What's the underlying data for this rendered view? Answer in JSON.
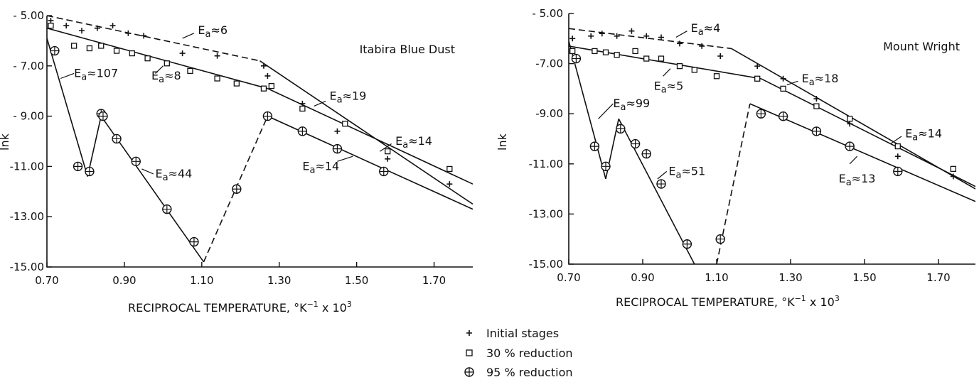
{
  "legend": [
    {
      "symbol": "plus",
      "label": "Initial stages"
    },
    {
      "symbol": "square",
      "label": "30 % reduction"
    },
    {
      "symbol": "circle-plus",
      "label": "95 % reduction"
    }
  ],
  "chart_data": [
    {
      "type": "scatter",
      "title": "Itabira Blue Dust",
      "xlabel": "RECIPROCAL TEMPERATURE,",
      "xlabel_unit_base": "°K",
      "xlabel_unit_exp": "−1",
      "xlabel_unit_mult": "x 10",
      "xlabel_unit_mult_exp": "3",
      "ylabel": "lnk",
      "xlim": [
        0.7,
        1.8
      ],
      "ylim": [
        -15.0,
        -5.0
      ],
      "xticks": [
        {
          "v": 0.7,
          "label": "0.70"
        },
        {
          "v": 0.9,
          "label": "0.90"
        },
        {
          "v": 1.1,
          "label": "1.10"
        },
        {
          "v": 1.3,
          "label": "1.30"
        },
        {
          "v": 1.5,
          "label": "1.50"
        },
        {
          "v": 1.7,
          "label": "1.70"
        }
      ],
      "yticks": [
        {
          "v": -5,
          "label": "- 5.00"
        },
        {
          "v": -7,
          "label": "- 7.00"
        },
        {
          "v": -9,
          "label": "- 9.00"
        },
        {
          "v": -11,
          "label": "-11.00"
        },
        {
          "v": -13,
          "label": "-13.00"
        },
        {
          "v": -15,
          "label": "-15.00"
        }
      ],
      "series": [
        {
          "name": "Initial stages",
          "marker": "plus",
          "points": [
            [
              0.71,
              -5.2
            ],
            [
              0.75,
              -5.4
            ],
            [
              0.79,
              -5.6
            ],
            [
              0.83,
              -5.5
            ],
            [
              0.87,
              -5.4
            ],
            [
              0.91,
              -5.7
            ],
            [
              0.95,
              -5.8
            ],
            [
              1.05,
              -6.5
            ],
            [
              1.14,
              -6.6
            ],
            [
              1.26,
              -7.0
            ],
            [
              1.27,
              -7.4
            ],
            [
              1.36,
              -8.5
            ],
            [
              1.45,
              -9.6
            ],
            [
              1.58,
              -10.7
            ],
            [
              1.74,
              -11.7
            ]
          ]
        },
        {
          "name": "30 % reduction",
          "marker": "square",
          "points": [
            [
              0.71,
              -5.4
            ],
            [
              0.77,
              -6.2
            ],
            [
              0.81,
              -6.3
            ],
            [
              0.84,
              -6.2
            ],
            [
              0.88,
              -6.4
            ],
            [
              0.92,
              -6.5
            ],
            [
              0.96,
              -6.7
            ],
            [
              1.01,
              -6.9
            ],
            [
              1.07,
              -7.2
            ],
            [
              1.14,
              -7.5
            ],
            [
              1.19,
              -7.7
            ],
            [
              1.26,
              -7.9
            ],
            [
              1.28,
              -7.8
            ],
            [
              1.36,
              -8.7
            ],
            [
              1.47,
              -9.3
            ],
            [
              1.58,
              -10.4
            ],
            [
              1.74,
              -11.1
            ]
          ]
        },
        {
          "name": "95 % reduction",
          "marker": "circle-plus",
          "points": [
            [
              0.72,
              -6.4
            ],
            [
              0.78,
              -11.0
            ],
            [
              0.81,
              -11.2
            ],
            [
              0.84,
              -8.9
            ],
            [
              0.845,
              -9.0
            ],
            [
              0.88,
              -9.9
            ],
            [
              0.93,
              -10.8
            ],
            [
              1.01,
              -12.7
            ],
            [
              1.08,
              -14.0
            ],
            [
              1.19,
              -11.9
            ],
            [
              1.27,
              -9.0
            ],
            [
              1.36,
              -9.6
            ],
            [
              1.45,
              -10.3
            ],
            [
              1.57,
              -11.2
            ]
          ]
        }
      ],
      "fit_lines": [
        {
          "style": "solid",
          "points": [
            [
              0.7,
              -5.9
            ],
            [
              0.805,
              -11.4
            ]
          ]
        },
        {
          "style": "solid",
          "points": [
            [
              0.805,
              -11.4
            ],
            [
              0.84,
              -9.0
            ]
          ]
        },
        {
          "style": "solid",
          "points": [
            [
              0.84,
              -9.0
            ],
            [
              1.105,
              -14.8
            ]
          ]
        },
        {
          "style": "dashed",
          "points": [
            [
              1.105,
              -14.8
            ],
            [
              1.27,
              -9.0
            ]
          ]
        },
        {
          "style": "solid",
          "points": [
            [
              1.27,
              -9.0
            ],
            [
              1.8,
              -12.7
            ]
          ]
        },
        {
          "style": "dashed",
          "points": [
            [
              0.7,
              -5.0
            ],
            [
              1.25,
              -6.8
            ]
          ]
        },
        {
          "style": "solid",
          "points": [
            [
              1.25,
              -6.8
            ],
            [
              1.8,
              -12.5
            ]
          ]
        },
        {
          "style": "solid",
          "points": [
            [
              0.7,
              -5.5
            ],
            [
              1.27,
              -7.9
            ]
          ]
        },
        {
          "style": "solid",
          "points": [
            [
              1.27,
              -7.9
            ],
            [
              1.8,
              -11.7
            ]
          ]
        }
      ],
      "annotations": [
        {
          "base": "E",
          "sub": "a",
          "rel": "≈6",
          "at": [
            1.09,
            -5.6
          ],
          "leader": [
            [
              1.08,
              -5.7
            ],
            [
              1.05,
              -5.9
            ]
          ]
        },
        {
          "base": "E",
          "sub": "a",
          "rel": "≈8",
          "at": [
            0.97,
            -7.4
          ],
          "leader": [
            [
              0.98,
              -7.3
            ],
            [
              1.0,
              -7.0
            ]
          ]
        },
        {
          "base": "E",
          "sub": "a",
          "rel": "≈107",
          "at": [
            0.77,
            -7.3
          ],
          "leader": [
            [
              0.77,
              -7.3
            ],
            [
              0.735,
              -7.5
            ]
          ]
        },
        {
          "base": "E",
          "sub": "a",
          "rel": "≈19",
          "at": [
            1.43,
            -8.2
          ],
          "leader": [
            [
              1.42,
              -8.4
            ],
            [
              1.39,
              -8.6
            ]
          ]
        },
        {
          "base": "E",
          "sub": "a",
          "rel": "≈14",
          "at": [
            1.6,
            -10.0
          ],
          "leader": [
            [
              1.59,
              -10.1
            ],
            [
              1.56,
              -10.4
            ]
          ]
        },
        {
          "base": "E",
          "sub": "a",
          "rel": "≈14",
          "at": [
            1.36,
            -11.0
          ],
          "leader": [
            [
              1.45,
              -10.8
            ],
            [
              1.49,
              -10.6
            ]
          ]
        },
        {
          "base": "E",
          "sub": "a",
          "rel": "≈44",
          "at": [
            0.98,
            -11.3
          ],
          "leader": [
            [
              0.975,
              -11.3
            ],
            [
              0.945,
              -11.1
            ]
          ]
        }
      ]
    },
    {
      "type": "scatter",
      "title": "Mount Wright",
      "xlabel": "RECIPROCAL TEMPERATURE,",
      "xlabel_unit_base": "°K",
      "xlabel_unit_exp": "−1",
      "xlabel_unit_mult": "x 10",
      "xlabel_unit_mult_exp": "3",
      "ylabel": "lnk",
      "xlim": [
        0.7,
        1.8
      ],
      "ylim": [
        -15.0,
        -5.0
      ],
      "xticks": [
        {
          "v": 0.7,
          "label": "0.70"
        },
        {
          "v": 0.9,
          "label": "0.90"
        },
        {
          "v": 1.1,
          "label": "1.10"
        },
        {
          "v": 1.3,
          "label": "1.30"
        },
        {
          "v": 1.5,
          "label": "1.50"
        },
        {
          "v": 1.7,
          "label": "1.70"
        }
      ],
      "yticks": [
        {
          "v": -5,
          "label": "- 5.00"
        },
        {
          "v": -7,
          "label": "-7.00"
        },
        {
          "v": -9,
          "label": "-9.00"
        },
        {
          "v": -11,
          "label": "-11.00"
        },
        {
          "v": -13,
          "label": "-13.00"
        },
        {
          "v": -15,
          "label": "-15.00"
        }
      ],
      "series": [
        {
          "name": "Initial stages",
          "marker": "plus",
          "points": [
            [
              0.71,
              -6.0
            ],
            [
              0.76,
              -5.9
            ],
            [
              0.79,
              -5.8
            ],
            [
              0.83,
              -5.9
            ],
            [
              0.87,
              -5.7
            ],
            [
              0.91,
              -5.9
            ],
            [
              0.95,
              -5.95
            ],
            [
              1.0,
              -6.2
            ],
            [
              1.06,
              -6.3
            ],
            [
              1.11,
              -6.7
            ],
            [
              1.21,
              -7.1
            ],
            [
              1.28,
              -7.6
            ],
            [
              1.37,
              -8.4
            ],
            [
              1.46,
              -9.4
            ],
            [
              1.59,
              -10.7
            ],
            [
              1.74,
              -11.5
            ]
          ]
        },
        {
          "name": "30 % reduction",
          "marker": "square",
          "points": [
            [
              0.71,
              -6.5
            ],
            [
              0.77,
              -6.5
            ],
            [
              0.8,
              -6.55
            ],
            [
              0.83,
              -6.65
            ],
            [
              0.88,
              -6.5
            ],
            [
              0.91,
              -6.8
            ],
            [
              0.95,
              -6.8
            ],
            [
              1.0,
              -7.1
            ],
            [
              1.04,
              -7.25
            ],
            [
              1.1,
              -7.5
            ],
            [
              1.21,
              -7.6
            ],
            [
              1.28,
              -8.0
            ],
            [
              1.37,
              -8.7
            ],
            [
              1.46,
              -9.2
            ],
            [
              1.59,
              -10.3
            ],
            [
              1.74,
              -11.2
            ]
          ]
        },
        {
          "name": "95 % reduction",
          "marker": "circle-plus",
          "points": [
            [
              0.72,
              -6.8
            ],
            [
              0.77,
              -10.3
            ],
            [
              0.8,
              -11.1
            ],
            [
              0.84,
              -9.6
            ],
            [
              0.88,
              -10.2
            ],
            [
              0.91,
              -10.6
            ],
            [
              0.95,
              -11.8
            ],
            [
              1.02,
              -14.2
            ],
            [
              1.11,
              -14.0
            ],
            [
              1.22,
              -9.0
            ],
            [
              1.28,
              -9.1
            ],
            [
              1.37,
              -9.7
            ],
            [
              1.46,
              -10.3
            ],
            [
              1.59,
              -11.3
            ]
          ]
        }
      ],
      "fit_lines": [
        {
          "style": "solid",
          "points": [
            [
              0.7,
              -6.1
            ],
            [
              0.8,
              -11.6
            ]
          ]
        },
        {
          "style": "solid",
          "points": [
            [
              0.8,
              -11.6
            ],
            [
              0.835,
              -9.2
            ]
          ]
        },
        {
          "style": "solid",
          "points": [
            [
              0.835,
              -9.2
            ],
            [
              1.04,
              -15.0
            ]
          ]
        },
        {
          "style": "dashed",
          "points": [
            [
              1.1,
              -15.0
            ],
            [
              1.19,
              -8.6
            ]
          ]
        },
        {
          "style": "solid",
          "points": [
            [
              1.19,
              -8.6
            ],
            [
              1.8,
              -12.5
            ]
          ]
        },
        {
          "style": "dashed",
          "points": [
            [
              0.7,
              -5.6
            ],
            [
              1.14,
              -6.4
            ]
          ]
        },
        {
          "style": "solid",
          "points": [
            [
              1.14,
              -6.4
            ],
            [
              1.8,
              -12.0
            ]
          ]
        },
        {
          "style": "solid",
          "points": [
            [
              0.7,
              -6.3
            ],
            [
              1.22,
              -7.6
            ]
          ]
        },
        {
          "style": "solid",
          "points": [
            [
              1.22,
              -7.6
            ],
            [
              1.8,
              -11.9
            ]
          ]
        }
      ],
      "annotations": [
        {
          "base": "E",
          "sub": "a",
          "rel": "≈4",
          "at": [
            1.03,
            -5.6
          ],
          "leader": [
            [
              1.02,
              -5.7
            ],
            [
              0.99,
              -5.95
            ]
          ]
        },
        {
          "base": "E",
          "sub": "a",
          "rel": "≈5",
          "at": [
            0.93,
            -7.9
          ],
          "leader": [
            [
              0.955,
              -7.5
            ],
            [
              0.975,
              -7.2
            ]
          ]
        },
        {
          "base": "E",
          "sub": "a",
          "rel": "≈18",
          "at": [
            1.33,
            -7.6
          ],
          "leader": [
            [
              1.32,
              -7.7
            ],
            [
              1.29,
              -7.85
            ]
          ]
        },
        {
          "base": "E",
          "sub": "a",
          "rel": "≈99",
          "at": [
            0.82,
            -8.6
          ],
          "leader": [
            [
              0.82,
              -8.6
            ],
            [
              0.78,
              -9.2
            ]
          ]
        },
        {
          "base": "E",
          "sub": "a",
          "rel": "≈51",
          "at": [
            0.97,
            -11.3
          ],
          "leader": [
            [
              0.965,
              -11.3
            ],
            [
              0.94,
              -11.6
            ]
          ]
        },
        {
          "base": "E",
          "sub": "a",
          "rel": "≈14",
          "at": [
            1.61,
            -9.8
          ],
          "leader": [
            [
              1.6,
              -9.9
            ],
            [
              1.57,
              -10.2
            ]
          ]
        },
        {
          "base": "E",
          "sub": "a",
          "rel": "≈13",
          "at": [
            1.43,
            -11.6
          ],
          "leader": [
            [
              1.46,
              -11.0
            ],
            [
              1.48,
              -10.7
            ]
          ]
        }
      ]
    }
  ]
}
